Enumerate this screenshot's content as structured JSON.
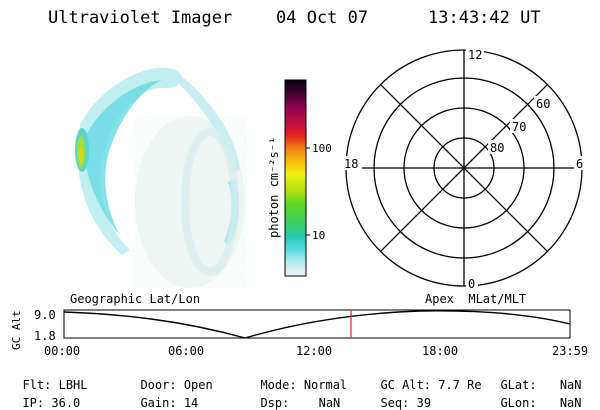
{
  "header": {
    "instrument": "Ultraviolet Imager",
    "date": "04 Oct 07",
    "time": "13:43:42 UT"
  },
  "colorbar": {
    "label": "photon cm⁻²s⁻¹",
    "ticks": [
      "100",
      "10"
    ]
  },
  "polar_plot": {
    "mlt_labels": {
      "top": "12",
      "left": "18",
      "right": "6",
      "bottom": "0"
    },
    "lat_labels": [
      "60",
      "70",
      "80"
    ]
  },
  "timeline": {
    "ylabel": "GC Alt",
    "y_ticks": [
      "9.0",
      "1.8"
    ],
    "left_title": "Geographic Lat/Lon",
    "right_title": "Apex  MLat/MLT",
    "x_ticks": [
      "00:00",
      "06:00",
      "12:00",
      "18:00",
      "23:59"
    ]
  },
  "status": {
    "row1": [
      {
        "label": "Flt:",
        "value": "LBHL"
      },
      {
        "label": "Door:",
        "value": "Open"
      },
      {
        "label": "Mode:",
        "value": "Normal"
      },
      {
        "label": "GC Alt:",
        "value": "7.7 Re"
      },
      {
        "label": "GLat:",
        "value": "NaN"
      }
    ],
    "row2": [
      {
        "label": "IP:",
        "value": "36.0"
      },
      {
        "label": "Gain:",
        "value": "14"
      },
      {
        "label": "Dsp:",
        "value": "NaN"
      },
      {
        "label": "Seq:",
        "value": "39"
      },
      {
        "label": "GLon:",
        "value": "NaN"
      }
    ]
  }
}
